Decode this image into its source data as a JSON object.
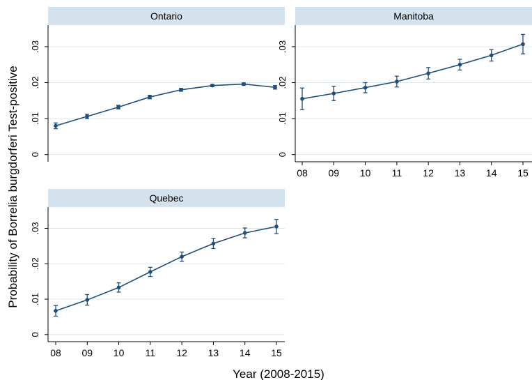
{
  "chart_data": {
    "type": "line",
    "ylabel": "Probability of Borrelia burgdorferi Test-positive",
    "xlabel": "Year (2008-2015)",
    "x_ticks": [
      "08",
      "09",
      "10",
      "11",
      "12",
      "13",
      "14",
      "15"
    ],
    "y_ticks": [
      "0",
      ".01",
      ".02",
      ".03"
    ],
    "ylim": [
      -0.002,
      0.036
    ],
    "grid": true,
    "colors": {
      "line": "#1f4e79",
      "panel_header": "#d3e2ec",
      "grid": "#dbe7ef",
      "axis": "#000000"
    },
    "panels": [
      {
        "title": "Ontario",
        "x": [
          "08",
          "09",
          "10",
          "11",
          "12",
          "13",
          "14",
          "15"
        ],
        "values": [
          0.008,
          0.0106,
          0.0132,
          0.016,
          0.018,
          0.0192,
          0.0196,
          0.0187
        ],
        "ci_low": [
          0.0072,
          0.01,
          0.0127,
          0.0155,
          0.0176,
          0.0189,
          0.0193,
          0.0182
        ],
        "ci_high": [
          0.0088,
          0.0112,
          0.0137,
          0.0165,
          0.0184,
          0.0195,
          0.0199,
          0.0192
        ]
      },
      {
        "title": "Manitoba",
        "x": [
          "08",
          "09",
          "10",
          "11",
          "12",
          "13",
          "14",
          "15"
        ],
        "values": [
          0.0155,
          0.017,
          0.0186,
          0.0203,
          0.0226,
          0.025,
          0.0276,
          0.0307
        ],
        "ci_low": [
          0.0125,
          0.015,
          0.0172,
          0.0188,
          0.021,
          0.0235,
          0.026,
          0.028
        ],
        "ci_high": [
          0.0185,
          0.019,
          0.02,
          0.0218,
          0.0242,
          0.0265,
          0.0292,
          0.0334
        ]
      },
      {
        "title": "Quebec",
        "x": [
          "08",
          "09",
          "10",
          "11",
          "12",
          "13",
          "14",
          "15"
        ],
        "values": [
          0.0067,
          0.0098,
          0.0133,
          0.0177,
          0.022,
          0.0257,
          0.0287,
          0.0305
        ],
        "ci_low": [
          0.0052,
          0.0083,
          0.012,
          0.0164,
          0.0207,
          0.0243,
          0.0273,
          0.0285
        ],
        "ci_high": [
          0.0082,
          0.0113,
          0.0146,
          0.019,
          0.0233,
          0.0271,
          0.0301,
          0.0325
        ]
      }
    ]
  }
}
